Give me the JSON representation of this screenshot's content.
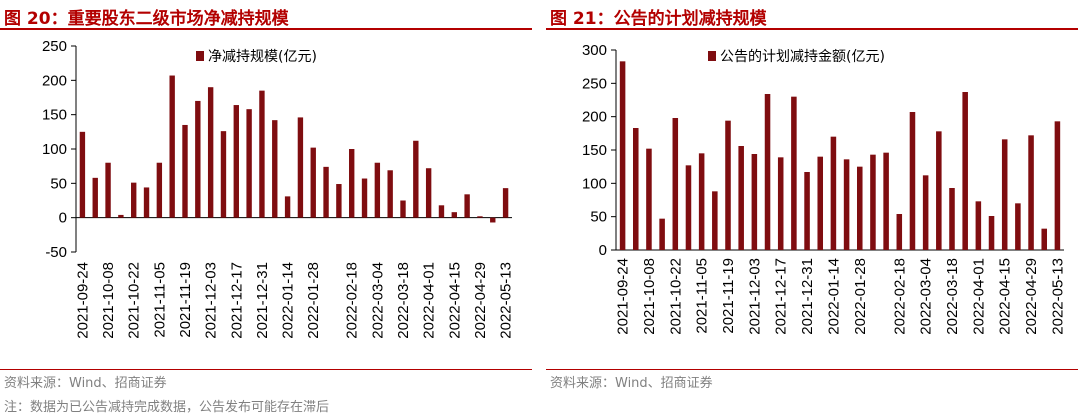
{
  "charts": [
    {
      "title": "图 20：重要股东二级市场净减持规模",
      "source": "资料来源：Wind、招商证券",
      "chart_data": {
        "type": "bar",
        "categories": [
          "2021-09-24",
          "2021-10-01",
          "2021-10-08",
          "2021-10-15",
          "2021-10-22",
          "2021-10-29",
          "2021-11-05",
          "2021-11-12",
          "2021-11-19",
          "2021-11-26",
          "2021-12-03",
          "2021-12-10",
          "2021-12-17",
          "2021-12-24",
          "2021-12-31",
          "2022-01-07",
          "2022-01-14",
          "2022-01-21",
          "2022-01-28",
          "2022-02-04",
          "2022-02-11",
          "2022-02-18",
          "2022-02-25",
          "2022-03-04",
          "2022-03-11",
          "2022-03-18",
          "2022-03-25",
          "2022-04-01",
          "2022-04-08",
          "2022-04-15",
          "2022-04-22",
          "2022-04-29",
          "2022-05-06",
          "2022-05-13"
        ],
        "tick_labels": [
          "2021-09-24",
          "2021-10-08",
          "2021-10-22",
          "2021-11-05",
          "2021-11-19",
          "2021-12-03",
          "2021-12-17",
          "2021-12-31",
          "2022-01-14",
          "2022-01-28",
          "2022-02-18",
          "2022-03-04",
          "2022-03-18",
          "2022-04-01",
          "2022-04-15",
          "2022-04-29",
          "2022-05-13"
        ],
        "series": [
          {
            "name": "净减持规模(亿元)",
            "color": "#7f0d10",
            "values": [
              125,
              58,
              80,
              4,
              51,
              44,
              80,
              207,
              135,
              170,
              190,
              126,
              164,
              158,
              185,
              142,
              31,
              146,
              102,
              74,
              49,
              100,
              57,
              80,
              69,
              25,
              112,
              72,
              18,
              8,
              34,
              2,
              -7,
              43
            ]
          }
        ],
        "ylim": [
          -50,
          250
        ],
        "yticks": [
          -50,
          0,
          50,
          100,
          150,
          200,
          250
        ],
        "legend_position": "top",
        "grid": false
      }
    },
    {
      "title": "图 21：公告的计划减持规模",
      "source": "资料来源：Wind、招商证券",
      "chart_data": {
        "type": "bar",
        "categories": [
          "2021-09-24",
          "2021-10-01",
          "2021-10-08",
          "2021-10-15",
          "2021-10-22",
          "2021-10-29",
          "2021-11-05",
          "2021-11-12",
          "2021-11-19",
          "2021-11-26",
          "2021-12-03",
          "2021-12-10",
          "2021-12-17",
          "2021-12-24",
          "2021-12-31",
          "2022-01-07",
          "2022-01-14",
          "2022-01-21",
          "2022-01-28",
          "2022-02-04",
          "2022-02-11",
          "2022-02-18",
          "2022-02-25",
          "2022-03-04",
          "2022-03-11",
          "2022-03-18",
          "2022-03-25",
          "2022-04-01",
          "2022-04-08",
          "2022-04-15",
          "2022-04-22",
          "2022-04-29",
          "2022-05-06",
          "2022-05-13"
        ],
        "tick_labels": [
          "2021-09-24",
          "2021-10-08",
          "2021-10-22",
          "2021-11-05",
          "2021-11-19",
          "2021-12-03",
          "2021-12-17",
          "2021-12-31",
          "2022-01-14",
          "2022-01-28",
          "2022-02-18",
          "2022-03-04",
          "2022-03-18",
          "2022-04-01",
          "2022-04-15",
          "2022-04-29",
          "2022-05-13"
        ],
        "series": [
          {
            "name": "公告的计划减持金额(亿元)",
            "color": "#7f0d10",
            "values": [
              283,
              183,
              152,
              47,
              198,
              127,
              145,
              88,
              194,
              156,
              144,
              234,
              139,
              230,
              117,
              140,
              170,
              136,
              125,
              143,
              146,
              54,
              207,
              112,
              178,
              93,
              237,
              73,
              51,
              166,
              70,
              172,
              32,
              193
            ]
          }
        ],
        "ylim": [
          0,
          300
        ],
        "yticks": [
          0,
          50,
          100,
          150,
          200,
          250,
          300
        ],
        "legend_position": "top",
        "grid": false
      }
    }
  ],
  "footnote": "注：数据为已公告减持完成数据，公告发布可能存在滞后"
}
